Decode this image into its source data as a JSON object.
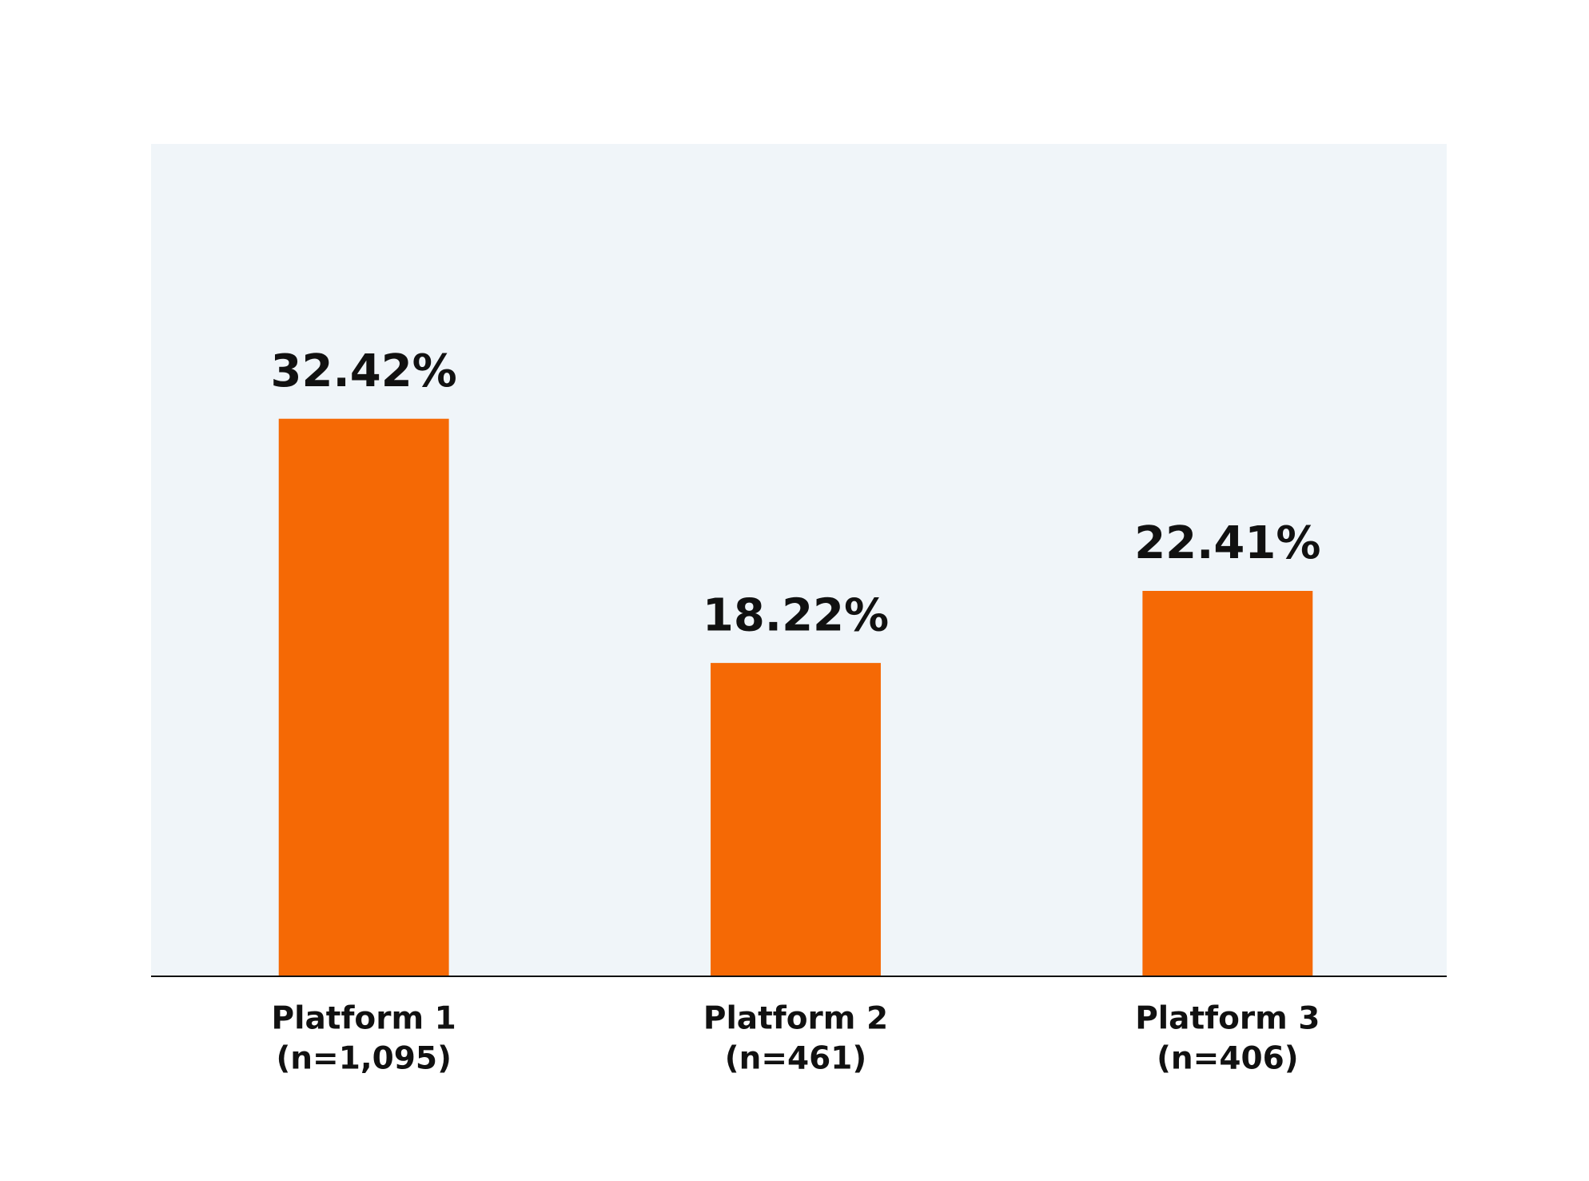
{
  "chart_data": {
    "type": "bar",
    "categories": [
      "Platform 1",
      "Platform 2",
      "Platform 3"
    ],
    "category_notes": [
      "(n=1,095)",
      "(n=461)",
      "(n=406)"
    ],
    "values": [
      32.42,
      18.22,
      22.41
    ],
    "value_labels": [
      "32.42%",
      "18.22%",
      "22.41%"
    ],
    "color": "#f56905",
    "background": "#f0f5f9",
    "ylim": [
      0,
      48.4
    ]
  }
}
